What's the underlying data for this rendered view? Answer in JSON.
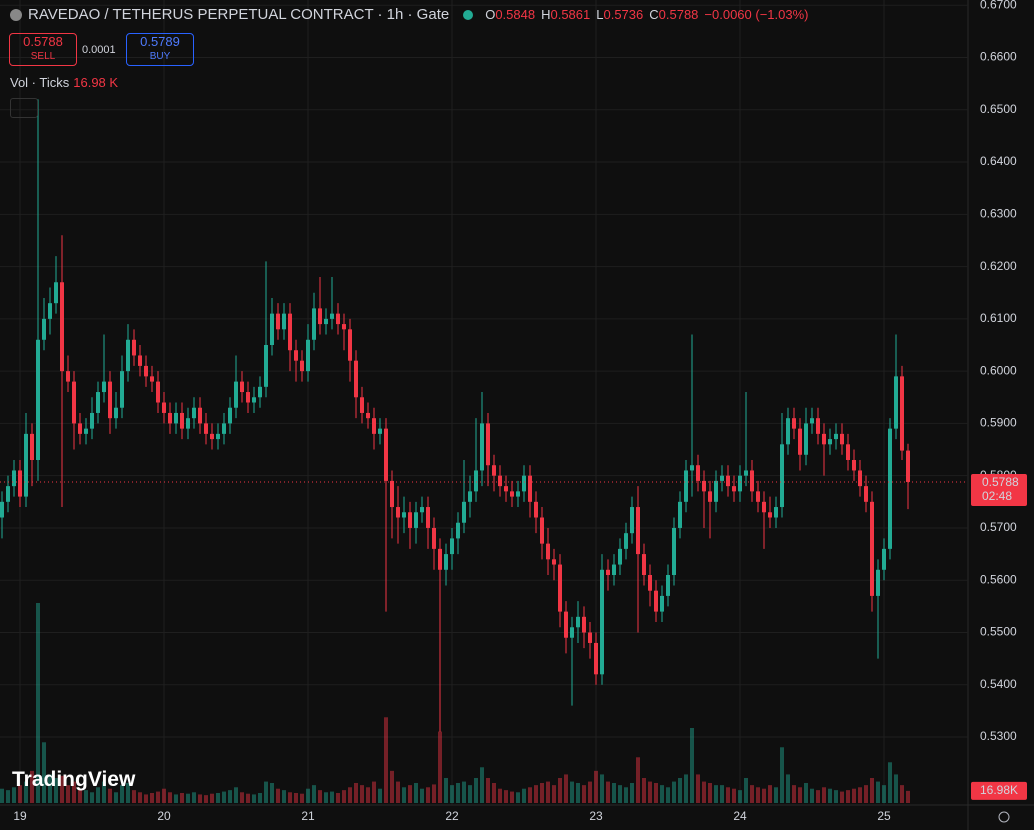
{
  "chart_data": {
    "type": "candlestick",
    "title": "RAVEDAO / TETHERUS PERPETUAL CONTRACT · 1h · Gate",
    "up_color": "#22ab94",
    "down_color": "#f23645",
    "grid": true,
    "ylim": [
      0.517,
      0.671
    ],
    "yticks": [
      {
        "value": 0.53,
        "label": "0.5300"
      },
      {
        "value": 0.54,
        "label": "0.5400"
      },
      {
        "value": 0.55,
        "label": "0.5500"
      },
      {
        "value": 0.56,
        "label": "0.5600"
      },
      {
        "value": 0.57,
        "label": "0.5700"
      },
      {
        "value": 0.58,
        "label": "0.5800"
      },
      {
        "value": 0.59,
        "label": "0.5900"
      },
      {
        "value": 0.6,
        "label": "0.6000"
      },
      {
        "value": 0.61,
        "label": "0.6100"
      },
      {
        "value": 0.62,
        "label": "0.6200"
      },
      {
        "value": 0.63,
        "label": "0.6300"
      },
      {
        "value": 0.64,
        "label": "0.6400"
      },
      {
        "value": 0.65,
        "label": "0.6500"
      },
      {
        "value": 0.66,
        "label": "0.6600"
      },
      {
        "value": 0.67,
        "label": "0.6700"
      }
    ],
    "categories": [
      null,
      null,
      null,
      "19",
      null,
      null,
      null,
      null,
      null,
      null,
      null,
      null,
      null,
      null,
      null,
      null,
      null,
      null,
      null,
      null,
      null,
      null,
      null,
      null,
      null,
      null,
      null,
      "20",
      null,
      null,
      null,
      null,
      null,
      null,
      null,
      null,
      null,
      null,
      null,
      null,
      null,
      null,
      null,
      null,
      null,
      null,
      null,
      null,
      null,
      null,
      null,
      "21",
      null,
      null,
      null,
      null,
      null,
      null,
      null,
      null,
      null,
      null,
      null,
      null,
      null,
      null,
      null,
      null,
      null,
      null,
      null,
      null,
      null,
      null,
      null,
      "22",
      null,
      null,
      null,
      null,
      null,
      null,
      null,
      null,
      null,
      null,
      null,
      null,
      null,
      null,
      null,
      null,
      null,
      null,
      null,
      null,
      null,
      null,
      null,
      "23",
      null,
      null,
      null,
      null,
      null,
      null,
      null,
      null,
      null,
      null,
      null,
      null,
      null,
      null,
      null,
      null,
      null,
      null,
      null,
      null,
      null,
      null,
      null,
      "24",
      null,
      null,
      null,
      null,
      null,
      null,
      null,
      null,
      null,
      null,
      null,
      null,
      null,
      null,
      null,
      null,
      null,
      null,
      null,
      null,
      null,
      null,
      null,
      "25",
      null,
      null,
      null,
      null
    ],
    "open": [
      0.572,
      0.575,
      0.578,
      0.581,
      0.576,
      0.588,
      0.583,
      0.606,
      0.61,
      0.613,
      0.617,
      0.6,
      0.598,
      0.59,
      0.588,
      0.589,
      0.592,
      0.596,
      0.598,
      0.591,
      0.593,
      0.6,
      0.606,
      0.603,
      0.601,
      0.599,
      0.598,
      0.594,
      0.592,
      0.59,
      0.592,
      0.589,
      0.591,
      0.593,
      0.59,
      0.588,
      0.587,
      0.588,
      0.59,
      0.593,
      0.598,
      0.596,
      0.594,
      0.595,
      0.597,
      0.605,
      0.611,
      0.608,
      0.611,
      0.604,
      0.602,
      0.6,
      0.606,
      0.612,
      0.609,
      0.61,
      0.611,
      0.609,
      0.608,
      0.602,
      0.595,
      0.592,
      0.591,
      0.588,
      0.589,
      0.579,
      0.574,
      0.572,
      0.573,
      0.57,
      0.573,
      0.574,
      0.57,
      0.566,
      0.562,
      0.565,
      0.568,
      0.571,
      0.575,
      0.577,
      0.581,
      0.59,
      0.582,
      0.58,
      0.578,
      0.577,
      0.576,
      0.577,
      0.58,
      0.575,
      0.572,
      0.567,
      0.564,
      0.563,
      0.554,
      0.549,
      0.551,
      0.553,
      0.55,
      0.548,
      0.542,
      0.562,
      0.561,
      0.563,
      0.566,
      0.569,
      0.574,
      0.565,
      0.561,
      0.558,
      0.554,
      0.557,
      0.561,
      0.57,
      0.575,
      0.581,
      0.582,
      0.579,
      0.577,
      0.575,
      0.579,
      0.58,
      0.578,
      0.577,
      0.58,
      0.581,
      0.577,
      0.575,
      0.573,
      0.572,
      0.574,
      0.586,
      0.591,
      0.589,
      0.584,
      0.59,
      0.591,
      0.588,
      0.586,
      0.587,
      0.588,
      0.586,
      0.583,
      0.581,
      0.578,
      0.575,
      0.557,
      0.562,
      0.566,
      0.589,
      0.599,
      0.5848
    ],
    "high": [
      0.577,
      0.58,
      0.583,
      0.583,
      0.592,
      0.59,
      0.652,
      0.614,
      0.616,
      0.622,
      0.626,
      0.603,
      0.6,
      0.592,
      0.591,
      0.595,
      0.598,
      0.607,
      0.6,
      0.596,
      0.603,
      0.609,
      0.608,
      0.605,
      0.603,
      0.601,
      0.6,
      0.596,
      0.594,
      0.594,
      0.594,
      0.593,
      0.595,
      0.595,
      0.592,
      0.59,
      0.59,
      0.592,
      0.595,
      0.603,
      0.6,
      0.598,
      0.597,
      0.599,
      0.621,
      0.614,
      0.613,
      0.613,
      0.613,
      0.606,
      0.604,
      0.609,
      0.615,
      0.618,
      0.612,
      0.618,
      0.613,
      0.611,
      0.61,
      0.604,
      0.597,
      0.594,
      0.593,
      0.591,
      0.591,
      0.581,
      0.578,
      0.576,
      0.575,
      0.575,
      0.576,
      0.576,
      0.572,
      0.568,
      0.567,
      0.57,
      0.573,
      0.583,
      0.58,
      0.591,
      0.596,
      0.592,
      0.584,
      0.582,
      0.58,
      0.579,
      0.579,
      0.582,
      0.582,
      0.577,
      0.574,
      0.57,
      0.566,
      0.565,
      0.556,
      0.553,
      0.556,
      0.555,
      0.552,
      0.55,
      0.565,
      0.564,
      0.565,
      0.568,
      0.571,
      0.576,
      0.578,
      0.567,
      0.563,
      0.56,
      0.559,
      0.563,
      0.572,
      0.577,
      0.583,
      0.607,
      0.584,
      0.581,
      0.579,
      0.581,
      0.582,
      0.582,
      0.58,
      0.582,
      0.596,
      0.583,
      0.579,
      0.577,
      0.576,
      0.576,
      0.592,
      0.593,
      0.593,
      0.591,
      0.593,
      0.593,
      0.593,
      0.59,
      0.589,
      0.59,
      0.59,
      0.588,
      0.585,
      0.583,
      0.58,
      0.577,
      0.564,
      0.568,
      0.591,
      0.607,
      0.601,
      0.5861
    ],
    "low": [
      0.568,
      0.573,
      0.576,
      0.574,
      0.574,
      0.578,
      0.579,
      0.604,
      0.607,
      0.611,
      0.574,
      0.596,
      0.585,
      0.586,
      0.586,
      0.587,
      0.59,
      0.594,
      0.588,
      0.589,
      0.591,
      0.598,
      0.601,
      0.599,
      0.597,
      0.596,
      0.592,
      0.59,
      0.588,
      0.588,
      0.587,
      0.587,
      0.589,
      0.588,
      0.586,
      0.585,
      0.585,
      0.586,
      0.588,
      0.591,
      0.594,
      0.592,
      0.592,
      0.593,
      0.595,
      0.603,
      0.606,
      0.606,
      0.6,
      0.598,
      0.598,
      0.598,
      0.604,
      0.607,
      0.607,
      0.608,
      0.607,
      0.604,
      0.598,
      0.591,
      0.59,
      0.589,
      0.585,
      0.586,
      0.554,
      0.568,
      0.567,
      0.569,
      0.566,
      0.567,
      0.571,
      0.566,
      0.562,
      0.531,
      0.559,
      0.562,
      0.565,
      0.569,
      0.572,
      0.575,
      0.578,
      0.578,
      0.577,
      0.576,
      0.575,
      0.574,
      0.574,
      0.575,
      0.572,
      0.569,
      0.564,
      0.561,
      0.56,
      0.551,
      0.546,
      0.536,
      0.548,
      0.547,
      0.545,
      0.54,
      0.54,
      0.558,
      0.559,
      0.561,
      0.564,
      0.567,
      0.55,
      0.559,
      0.555,
      0.552,
      0.552,
      0.555,
      0.559,
      0.568,
      0.573,
      0.576,
      0.577,
      0.57,
      0.568,
      0.573,
      0.577,
      0.576,
      0.575,
      0.575,
      0.578,
      0.575,
      0.573,
      0.566,
      0.57,
      0.57,
      0.572,
      0.584,
      0.587,
      0.581,
      0.582,
      0.588,
      0.586,
      0.58,
      0.584,
      0.585,
      0.584,
      0.581,
      0.579,
      0.576,
      0.573,
      0.554,
      0.545,
      0.56,
      0.564,
      0.587,
      0.583,
      0.5736
    ],
    "close": [
      0.575,
      0.578,
      0.581,
      0.576,
      0.588,
      0.583,
      0.606,
      0.61,
      0.613,
      0.617,
      0.6,
      0.598,
      0.59,
      0.588,
      0.589,
      0.592,
      0.596,
      0.598,
      0.591,
      0.593,
      0.6,
      0.606,
      0.603,
      0.601,
      0.599,
      0.598,
      0.594,
      0.592,
      0.59,
      0.592,
      0.589,
      0.591,
      0.593,
      0.59,
      0.588,
      0.587,
      0.588,
      0.59,
      0.593,
      0.598,
      0.596,
      0.594,
      0.595,
      0.597,
      0.605,
      0.611,
      0.608,
      0.611,
      0.604,
      0.602,
      0.6,
      0.606,
      0.612,
      0.609,
      0.61,
      0.611,
      0.609,
      0.608,
      0.602,
      0.595,
      0.592,
      0.591,
      0.588,
      0.589,
      0.579,
      0.574,
      0.572,
      0.573,
      0.57,
      0.573,
      0.574,
      0.57,
      0.566,
      0.562,
      0.565,
      0.568,
      0.571,
      0.575,
      0.577,
      0.581,
      0.59,
      0.582,
      0.58,
      0.578,
      0.577,
      0.576,
      0.577,
      0.58,
      0.575,
      0.572,
      0.567,
      0.564,
      0.563,
      0.554,
      0.549,
      0.551,
      0.553,
      0.55,
      0.548,
      0.542,
      0.562,
      0.561,
      0.563,
      0.566,
      0.569,
      0.574,
      0.565,
      0.561,
      0.558,
      0.554,
      0.557,
      0.561,
      0.57,
      0.575,
      0.581,
      0.582,
      0.579,
      0.577,
      0.575,
      0.579,
      0.58,
      0.578,
      0.577,
      0.58,
      0.581,
      0.577,
      0.575,
      0.573,
      0.572,
      0.574,
      0.586,
      0.591,
      0.589,
      0.584,
      0.59,
      0.591,
      0.588,
      0.586,
      0.587,
      0.588,
      0.586,
      0.583,
      0.581,
      0.578,
      0.575,
      0.557,
      0.562,
      0.566,
      0.589,
      0.599,
      0.5848,
      0.5788
    ],
    "volume": [
      20000,
      18000,
      22000,
      25000,
      30000,
      45000,
      280000,
      85000,
      40000,
      35000,
      38000,
      25000,
      30000,
      20000,
      18000,
      15000,
      22000,
      30000,
      20000,
      15000,
      25000,
      28000,
      18000,
      15000,
      12000,
      14000,
      16000,
      20000,
      15000,
      12000,
      14000,
      13000,
      15000,
      12000,
      11000,
      13000,
      14000,
      16000,
      18000,
      22000,
      15000,
      13000,
      12000,
      14000,
      30000,
      28000,
      20000,
      18000,
      15000,
      14000,
      13000,
      20000,
      25000,
      18000,
      15000,
      16000,
      14000,
      18000,
      22000,
      28000,
      25000,
      22000,
      30000,
      20000,
      120000,
      45000,
      30000,
      22000,
      25000,
      28000,
      20000,
      22000,
      26000,
      100000,
      35000,
      25000,
      28000,
      30000,
      25000,
      35000,
      50000,
      35000,
      28000,
      20000,
      18000,
      16000,
      15000,
      20000,
      22000,
      25000,
      28000,
      30000,
      25000,
      35000,
      40000,
      30000,
      28000,
      25000,
      30000,
      45000,
      40000,
      30000,
      28000,
      25000,
      22000,
      28000,
      64000,
      35000,
      30000,
      28000,
      25000,
      22000,
      30000,
      35000,
      40000,
      105000,
      40000,
      30000,
      28000,
      25000,
      25000,
      22000,
      20000,
      18000,
      35000,
      25000,
      22000,
      20000,
      25000,
      22000,
      78000,
      40000,
      25000,
      22000,
      28000,
      20000,
      18000,
      22000,
      20000,
      18000,
      16000,
      18000,
      20000,
      22000,
      25000,
      35000,
      30000,
      25000,
      57000,
      40000,
      25000,
      16980
    ]
  },
  "header": {
    "ohlc_labels": [
      "O",
      "H",
      "L",
      "C"
    ],
    "change": "−0.0060 (−1.03%)"
  },
  "trade": {
    "sell_price": "0.5788",
    "sell_label": "SELL",
    "spread": "0.0001",
    "buy_price": "0.5789",
    "buy_label": "BUY"
  },
  "indicator": {
    "label": "Vol · Ticks",
    "value": "16.98 K"
  },
  "price_tag": {
    "countdown": "02:48"
  },
  "volume_tag": "16.98K",
  "logo": "TradingView"
}
